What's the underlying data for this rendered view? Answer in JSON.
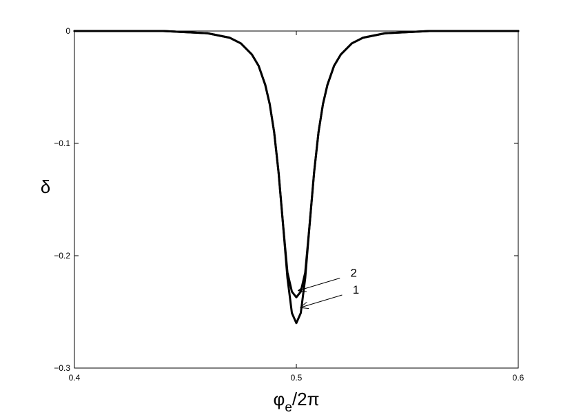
{
  "chart_data": {
    "type": "line",
    "title": "",
    "xlabel": "φe/2π",
    "xlabel_parts": {
      "main": "φ",
      "sub": "e",
      "rest": "/2π"
    },
    "ylabel": "δ",
    "xlim": [
      0.4,
      0.6
    ],
    "ylim": [
      -0.3,
      0
    ],
    "xticks": [
      0.4,
      0.5,
      0.6
    ],
    "xtick_labels": [
      "0.4",
      "0.5",
      "0.6"
    ],
    "yticks": [
      0,
      -0.1,
      -0.2,
      -0.3
    ],
    "ytick_labels": [
      "0",
      "−0.1",
      "−0.2",
      "−0.3"
    ],
    "grid": false,
    "legend": "none",
    "series": [
      {
        "name": "1",
        "color": "#000000",
        "x": [
          0.4,
          0.44,
          0.46,
          0.47,
          0.475,
          0.48,
          0.483,
          0.486,
          0.488,
          0.49,
          0.492,
          0.494,
          0.496,
          0.498,
          0.5,
          0.502,
          0.504,
          0.506,
          0.508,
          0.51,
          0.512,
          0.514,
          0.517,
          0.52,
          0.525,
          0.53,
          0.54,
          0.56,
          0.6
        ],
        "y": [
          0,
          0,
          -0.002,
          -0.006,
          -0.011,
          -0.021,
          -0.031,
          -0.048,
          -0.065,
          -0.09,
          -0.126,
          -0.172,
          -0.22,
          -0.251,
          -0.26,
          -0.251,
          -0.22,
          -0.172,
          -0.126,
          -0.09,
          -0.065,
          -0.048,
          -0.031,
          -0.021,
          -0.011,
          -0.006,
          -0.002,
          0,
          0
        ]
      },
      {
        "name": "2",
        "color": "#000000",
        "x": [
          0.4,
          0.44,
          0.46,
          0.47,
          0.475,
          0.48,
          0.483,
          0.486,
          0.488,
          0.49,
          0.492,
          0.494,
          0.496,
          0.498,
          0.5,
          0.502,
          0.504,
          0.506,
          0.508,
          0.51,
          0.512,
          0.514,
          0.517,
          0.52,
          0.525,
          0.53,
          0.54,
          0.56,
          0.6
        ],
        "y": [
          0,
          0,
          -0.002,
          -0.006,
          -0.011,
          -0.021,
          -0.031,
          -0.048,
          -0.065,
          -0.09,
          -0.126,
          -0.172,
          -0.215,
          -0.232,
          -0.237,
          -0.232,
          -0.215,
          -0.172,
          -0.126,
          -0.09,
          -0.065,
          -0.048,
          -0.031,
          -0.021,
          -0.011,
          -0.006,
          -0.002,
          0,
          0
        ]
      }
    ],
    "annotations": [
      {
        "text": "2",
        "series": "2",
        "points_to": [
          0.501,
          -0.231
        ]
      },
      {
        "text": "1",
        "series": "1",
        "points_to": [
          0.502,
          -0.246
        ]
      }
    ]
  }
}
